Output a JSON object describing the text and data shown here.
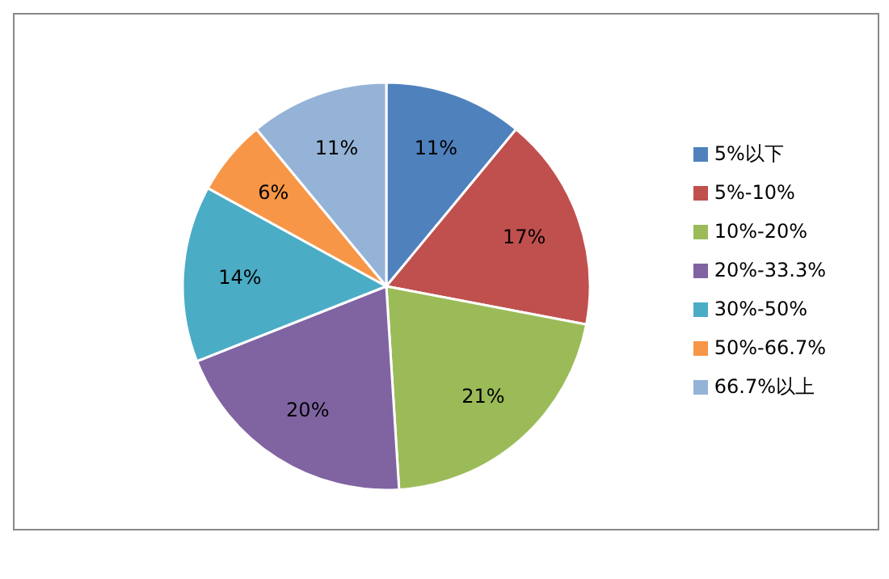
{
  "chart_data": {
    "type": "pie",
    "categories": [
      "5%以下",
      "5%-10%",
      "10%-20%",
      "20%-33.3%",
      "30%-50%",
      "50%-66.7%",
      "66.7%以上"
    ],
    "values": [
      11,
      17,
      21,
      20,
      14,
      6,
      11
    ],
    "value_labels": [
      "11%",
      "17%",
      "21%",
      "20%",
      "14%",
      "6%",
      "11%"
    ],
    "colors": [
      "#4f81bd",
      "#c0504d",
      "#9bbb59",
      "#8064a2",
      "#4bacc6",
      "#f79646",
      "#95b3d7"
    ],
    "legend": "right"
  }
}
